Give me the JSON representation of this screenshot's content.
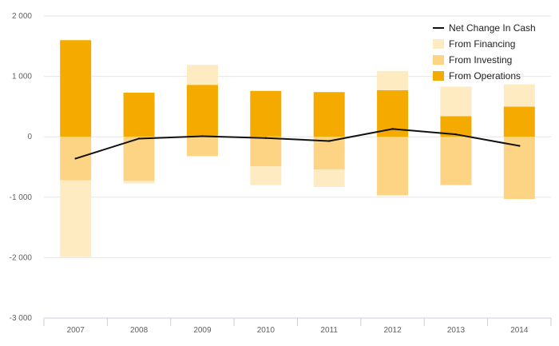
{
  "chart_data": {
    "type": "bar",
    "stacked": true,
    "title": "",
    "xlabel": "",
    "ylabel": "",
    "ylim": [
      -3000,
      2000
    ],
    "yticks": [
      2000,
      1000,
      0,
      -1000,
      -2000,
      -3000
    ],
    "ytick_labels": [
      "2 000",
      "1 000",
      "0",
      "-1 000",
      "-2 000",
      "-3 000"
    ],
    "grid": true,
    "legend_position": "top-right",
    "categories": [
      "2007",
      "2008",
      "2009",
      "2010",
      "2011",
      "2012",
      "2013",
      "2014"
    ],
    "series": [
      {
        "name": "From Operations",
        "kind": "bar",
        "color": "#F5AA00",
        "values": [
          1600,
          730,
          860,
          760,
          740,
          770,
          340,
          500
        ]
      },
      {
        "name": "From Investing",
        "kind": "bar",
        "color": "#FCD484",
        "values": [
          -720,
          -730,
          -320,
          -490,
          -540,
          -970,
          -800,
          -1030
        ]
      },
      {
        "name": "From Financing",
        "kind": "bar",
        "color": "#FEEBC1",
        "values": [
          -1270,
          -40,
          330,
          -310,
          -290,
          320,
          490,
          370
        ]
      },
      {
        "name": "Net Change In Cash",
        "kind": "line",
        "color": "#111111",
        "values": [
          -360,
          -30,
          10,
          -20,
          -70,
          130,
          40,
          -150
        ]
      }
    ],
    "legend_order": [
      "Net Change In Cash",
      "From Financing",
      "From Investing",
      "From Operations"
    ]
  }
}
